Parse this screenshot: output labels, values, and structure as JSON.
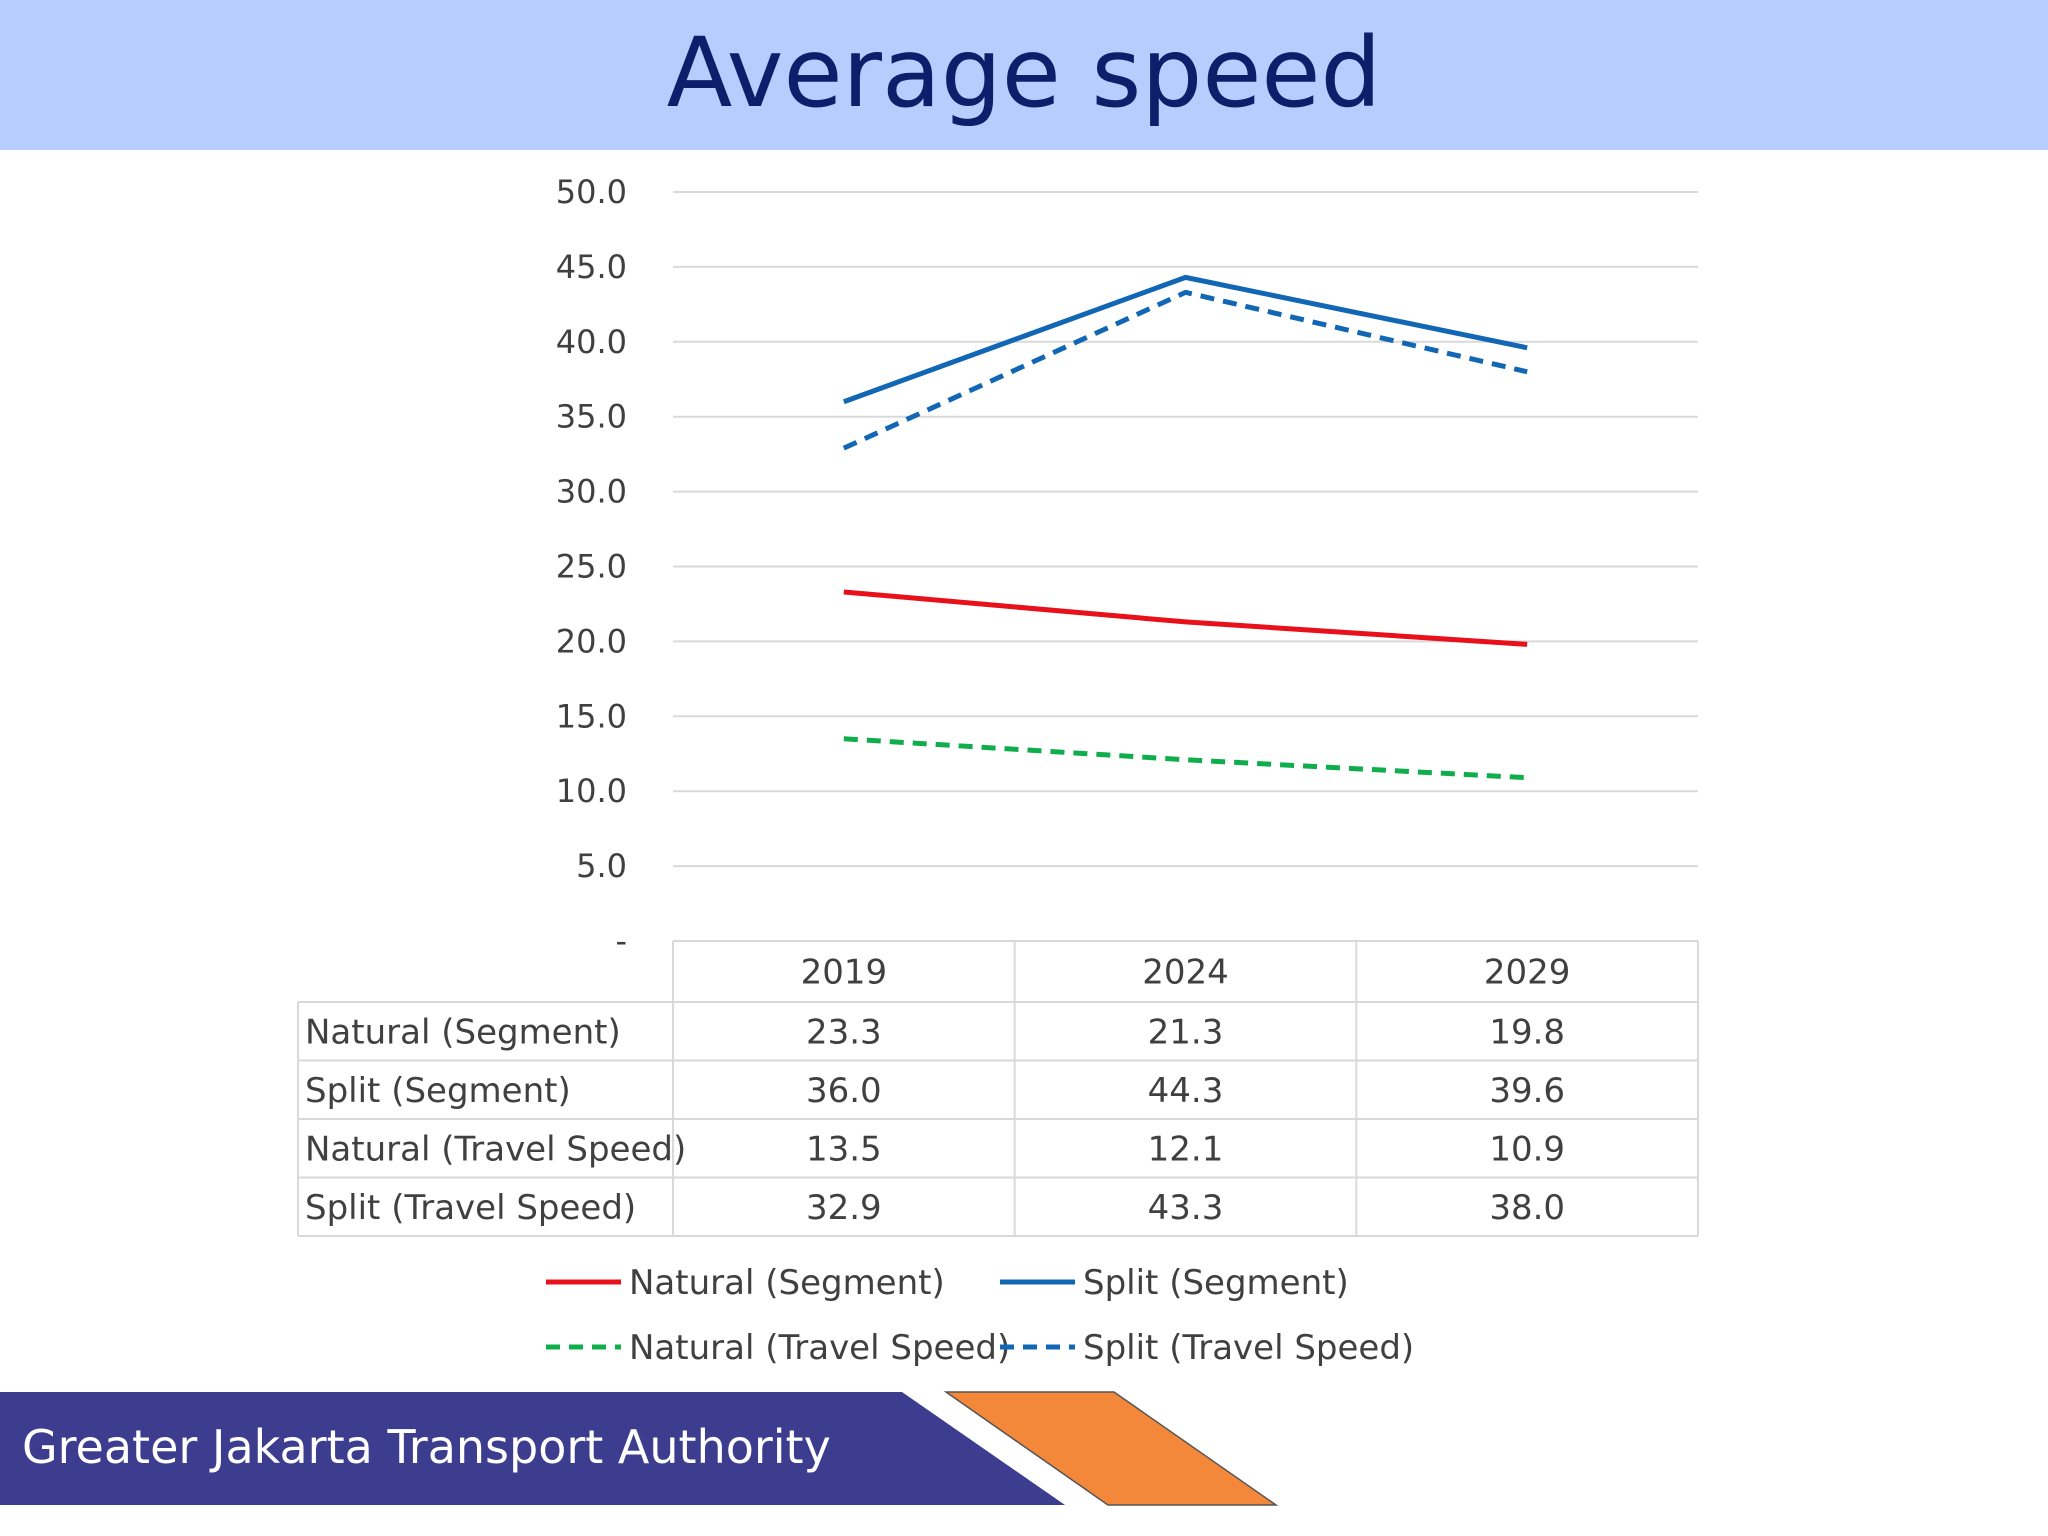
{
  "page_title": "Average speed",
  "footer": {
    "org_name": "Greater Jakarta Transport Authority"
  },
  "colors": {
    "header_bg": "#b7cdfd",
    "title": "#0d1f6b",
    "footer_bar": "#3d3d8f",
    "footer_accent": "#f4883a",
    "natural": "#e8101a",
    "split": "#1267b5",
    "natural_travel": "#0fad4b",
    "split_travel": "#1267b5"
  },
  "chart_data": {
    "type": "line",
    "categories": [
      "2019",
      "2024",
      "2029"
    ],
    "ylim": [
      0,
      50
    ],
    "yticks": [
      0,
      5,
      10,
      15,
      20,
      25,
      30,
      35,
      40,
      45,
      50
    ],
    "ytick_labels": [
      "-",
      "5.0",
      "10.0",
      "15.0",
      "20.0",
      "25.0",
      "30.0",
      "35.0",
      "40.0",
      "45.0",
      "50.0"
    ],
    "grid": true,
    "legend_position": "bottom",
    "data_table": true,
    "series": [
      {
        "name": "Natural (Segment)",
        "values": [
          23.3,
          21.3,
          19.8
        ],
        "value_labels": [
          "23.3",
          "21.3",
          "19.8"
        ],
        "color": "#e8101a",
        "dash": "solid"
      },
      {
        "name": "Split (Segment)",
        "values": [
          36.0,
          44.3,
          39.6
        ],
        "value_labels": [
          "36.0",
          "44.3",
          "39.6"
        ],
        "color": "#1267b5",
        "dash": "solid"
      },
      {
        "name": "Natural (Travel Speed)",
        "values": [
          13.5,
          12.1,
          10.9
        ],
        "value_labels": [
          "13.5",
          "12.1",
          "10.9"
        ],
        "color": "#0fad4b",
        "dash": "dashed"
      },
      {
        "name": "Split (Travel Speed)",
        "values": [
          32.9,
          43.3,
          38.0
        ],
        "value_labels": [
          "32.9",
          "43.3",
          "38.0"
        ],
        "color": "#1267b5",
        "dash": "dashed"
      }
    ]
  }
}
